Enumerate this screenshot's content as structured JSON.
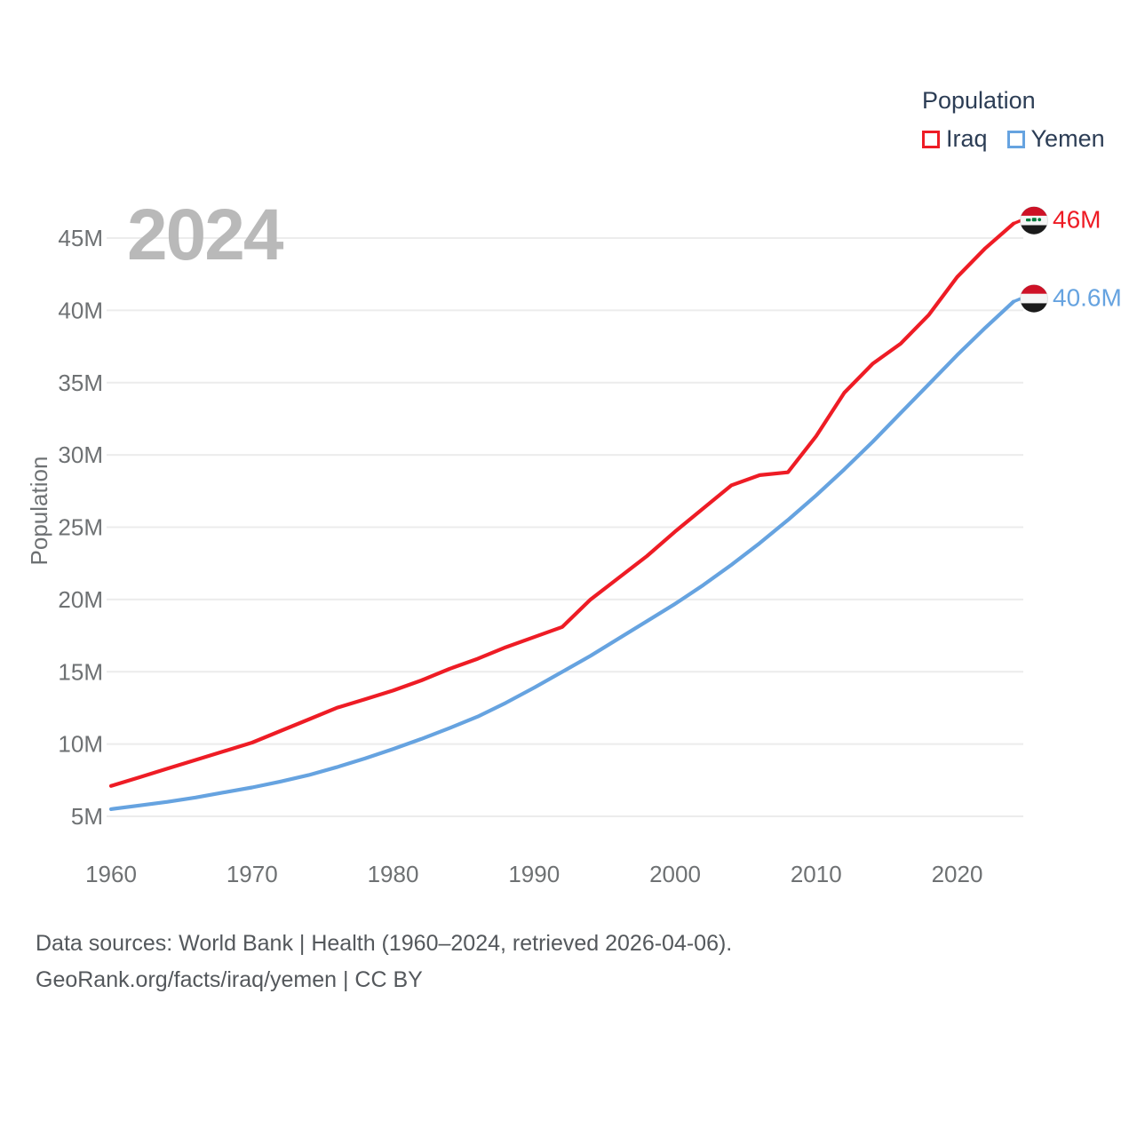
{
  "legend": {
    "title": "Population",
    "items": [
      {
        "label": "Iraq",
        "color": "#ee1c25"
      },
      {
        "label": "Yemen",
        "color": "#66a3e0"
      }
    ]
  },
  "watermark": "2024",
  "y_axis": {
    "title": "Population",
    "ticks": [
      {
        "value": 5,
        "label": "5M"
      },
      {
        "value": 10,
        "label": "10M"
      },
      {
        "value": 15,
        "label": "15M"
      },
      {
        "value": 20,
        "label": "20M"
      },
      {
        "value": 25,
        "label": "25M"
      },
      {
        "value": 30,
        "label": "30M"
      },
      {
        "value": 35,
        "label": "35M"
      },
      {
        "value": 40,
        "label": "40M"
      },
      {
        "value": 45,
        "label": "45M"
      }
    ]
  },
  "x_axis": {
    "ticks": [
      {
        "value": 1960,
        "label": "1960"
      },
      {
        "value": 1970,
        "label": "1970"
      },
      {
        "value": 1980,
        "label": "1980"
      },
      {
        "value": 1990,
        "label": "1990"
      },
      {
        "value": 2000,
        "label": "2000"
      },
      {
        "value": 2010,
        "label": "2010"
      },
      {
        "value": 2020,
        "label": "2020"
      }
    ]
  },
  "end_labels": [
    {
      "series": "Iraq",
      "label": "46M",
      "flag": "iraq-flag-icon",
      "color": "#ee1c25"
    },
    {
      "series": "Yemen",
      "label": "40.6M",
      "flag": "yemen-flag-icon",
      "color": "#66a3e0"
    }
  ],
  "footer": {
    "line1": "Data sources: World Bank | Health (1960–2024, retrieved 2026-04-06).",
    "line2": "GeoRank.org/facts/iraq/yemen | CC BY"
  },
  "colors": {
    "iraq_line": "#ee1c25",
    "yemen_line": "#66a3e0",
    "gridline": "#ececec",
    "axis_text": "#6e7173",
    "legend_text": "#2c3d55",
    "watermark": "#b9b9b9",
    "footer_text": "#54585c",
    "flag_red": "#ce1126",
    "flag_white": "#f5f5f5",
    "flag_black": "#1a1a1a",
    "flag_green": "#007a3d"
  },
  "chart_data": {
    "type": "line",
    "title": "Population",
    "xlabel": "",
    "ylabel": "Population",
    "units": "millions of people",
    "xlim": [
      1960,
      2024
    ],
    "ylim": [
      5,
      47
    ],
    "grid": "horizontal",
    "legend_position": "top-right",
    "x": [
      1960,
      1962,
      1964,
      1966,
      1968,
      1970,
      1972,
      1974,
      1976,
      1978,
      1980,
      1982,
      1984,
      1986,
      1988,
      1990,
      1992,
      1994,
      1996,
      1998,
      2000,
      2002,
      2004,
      2006,
      2008,
      2010,
      2012,
      2014,
      2016,
      2018,
      2020,
      2022,
      2024
    ],
    "series": [
      {
        "name": "Iraq",
        "color": "#ee1c25",
        "end_label": "46M",
        "values": [
          7.1,
          7.7,
          8.3,
          8.9,
          9.5,
          10.1,
          10.9,
          11.7,
          12.5,
          13.1,
          13.7,
          14.4,
          15.2,
          15.9,
          16.7,
          17.4,
          18.1,
          20.0,
          21.5,
          23.0,
          24.7,
          26.3,
          27.9,
          28.6,
          28.8,
          31.3,
          34.3,
          36.3,
          37.7,
          39.7,
          42.3,
          44.3,
          46.0
        ]
      },
      {
        "name": "Yemen",
        "color": "#66a3e0",
        "end_label": "40.6M",
        "values": [
          5.5,
          5.75,
          6.0,
          6.3,
          6.65,
          7.0,
          7.4,
          7.85,
          8.4,
          9.0,
          9.65,
          10.35,
          11.1,
          11.9,
          12.85,
          13.9,
          15.0,
          16.1,
          17.3,
          18.5,
          19.7,
          21.0,
          22.4,
          23.9,
          25.5,
          27.2,
          29.0,
          30.9,
          32.9,
          34.9,
          36.9,
          38.8,
          40.6
        ]
      }
    ]
  }
}
